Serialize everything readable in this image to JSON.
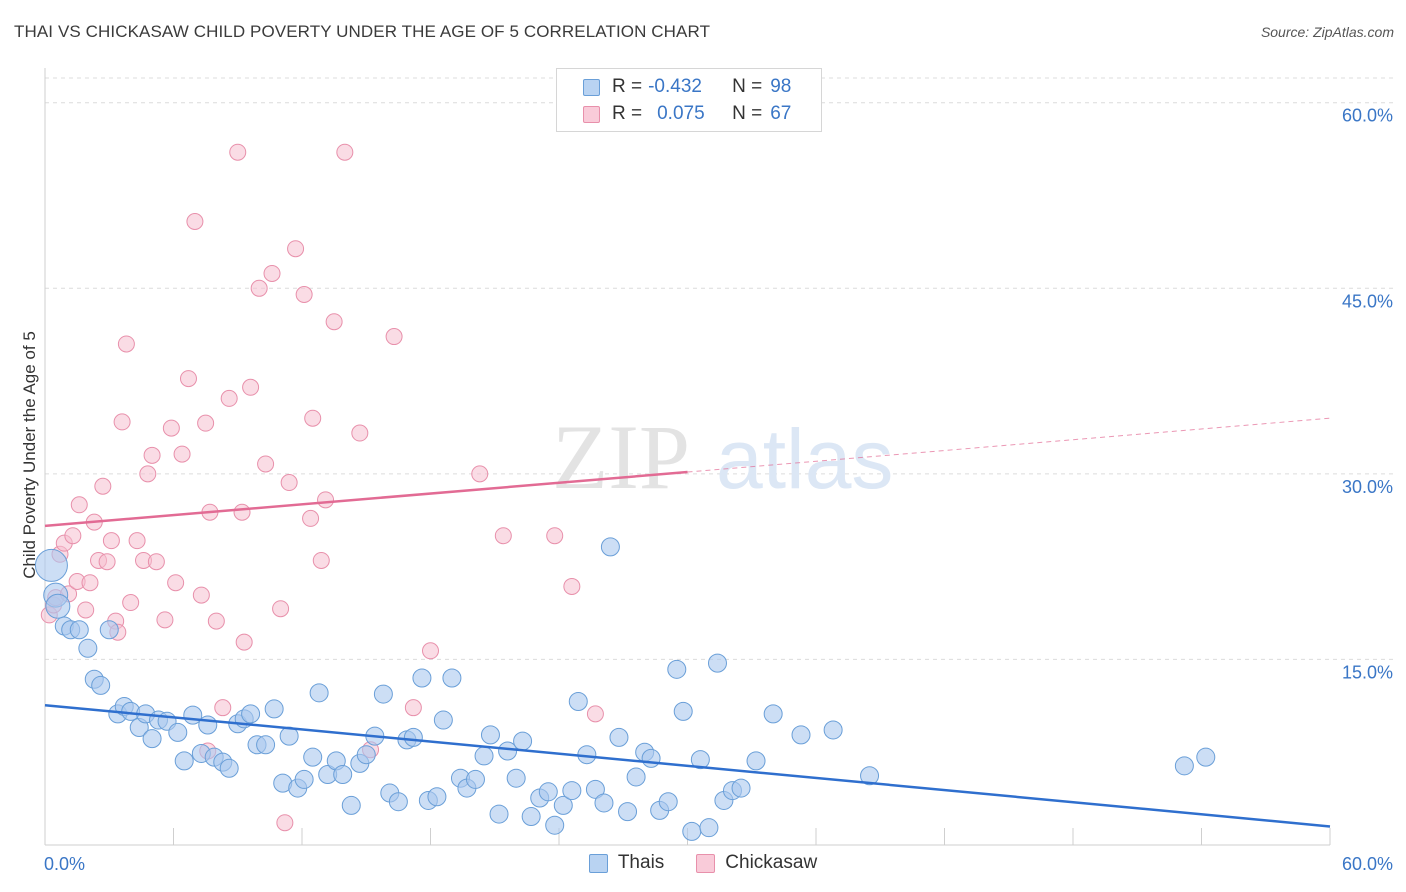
{
  "header": {
    "title": "THAI VS CHICKASAW CHILD POVERTY UNDER THE AGE OF 5 CORRELATION CHART",
    "source": "Source: ZipAtlas.com"
  },
  "watermark": {
    "part1": "ZIP",
    "part2": "atlas"
  },
  "legend": {
    "r_label": "R =",
    "n_label": "N =",
    "thais": {
      "r": "-0.432",
      "n": "98"
    },
    "chickasaw": {
      "r": "0.075",
      "n": "67"
    }
  },
  "bottom_legend": {
    "thais": "Thais",
    "chickasaw": "Chickasaw"
  },
  "colors": {
    "thais_fill": "#aac8ef",
    "thais_stroke": "#6a9fd8",
    "thais_line": "#2f6fce",
    "chickasaw_fill": "#f6bfd0",
    "chickasaw_stroke": "#e890ab",
    "chickasaw_line": "#e26b94",
    "tick_text": "#3a76c6"
  },
  "chart_data": {
    "type": "scatter",
    "title": "THAI VS CHICKASAW CHILD POVERTY UNDER THE AGE OF 5 CORRELATION CHART",
    "xlabel": "",
    "ylabel": "Child Poverty Under the Age of 5",
    "xlim": [
      0,
      60
    ],
    "ylim": [
      0,
      62
    ],
    "x_tick_labels": [
      "0.0%",
      "60.0%"
    ],
    "y_ticks": [
      15,
      30,
      45,
      60
    ],
    "y_tick_labels": [
      "15.0%",
      "30.0%",
      "45.0%",
      "60.0%"
    ],
    "grid": true,
    "legend_position": "top-center",
    "series": [
      {
        "name": "Thais",
        "r": -0.432,
        "n": 98,
        "trend": {
          "x": [
            0,
            60
          ],
          "y": [
            11.3,
            1.5
          ],
          "dashed_from": null
        },
        "points": [
          [
            0.3,
            22.6
          ],
          [
            0.5,
            20.2
          ],
          [
            0.6,
            19.3
          ],
          [
            0.9,
            17.7
          ],
          [
            1.2,
            17.4
          ],
          [
            1.6,
            17.4
          ],
          [
            2.0,
            15.9
          ],
          [
            2.3,
            13.4
          ],
          [
            2.6,
            12.9
          ],
          [
            3.0,
            17.4
          ],
          [
            3.4,
            10.6
          ],
          [
            3.7,
            11.2
          ],
          [
            4.0,
            10.8
          ],
          [
            4.4,
            9.5
          ],
          [
            4.7,
            10.6
          ],
          [
            5.0,
            8.6
          ],
          [
            5.3,
            10.1
          ],
          [
            5.7,
            10.0
          ],
          [
            6.2,
            9.1
          ],
          [
            6.5,
            6.8
          ],
          [
            6.9,
            10.5
          ],
          [
            7.3,
            7.4
          ],
          [
            7.6,
            9.7
          ],
          [
            7.9,
            7.1
          ],
          [
            8.3,
            6.7
          ],
          [
            8.6,
            6.2
          ],
          [
            9.0,
            9.8
          ],
          [
            9.3,
            10.2
          ],
          [
            9.6,
            10.6
          ],
          [
            9.9,
            8.1
          ],
          [
            10.3,
            8.1
          ],
          [
            10.7,
            11.0
          ],
          [
            11.1,
            5.0
          ],
          [
            11.4,
            8.8
          ],
          [
            11.8,
            4.6
          ],
          [
            12.1,
            5.3
          ],
          [
            12.5,
            7.1
          ],
          [
            12.8,
            12.3
          ],
          [
            13.2,
            5.7
          ],
          [
            13.6,
            6.8
          ],
          [
            13.9,
            5.7
          ],
          [
            14.3,
            3.2
          ],
          [
            14.7,
            6.6
          ],
          [
            15.0,
            7.3
          ],
          [
            15.4,
            8.8
          ],
          [
            15.8,
            12.2
          ],
          [
            16.1,
            4.2
          ],
          [
            16.5,
            3.5
          ],
          [
            16.9,
            8.5
          ],
          [
            17.2,
            8.7
          ],
          [
            17.6,
            13.5
          ],
          [
            17.9,
            3.6
          ],
          [
            18.3,
            3.9
          ],
          [
            18.6,
            10.1
          ],
          [
            19.0,
            13.5
          ],
          [
            19.4,
            5.4
          ],
          [
            19.7,
            4.6
          ],
          [
            20.1,
            5.3
          ],
          [
            20.5,
            7.2
          ],
          [
            20.8,
            8.9
          ],
          [
            21.2,
            2.5
          ],
          [
            21.6,
            7.6
          ],
          [
            22.0,
            5.4
          ],
          [
            22.3,
            8.4
          ],
          [
            22.7,
            2.3
          ],
          [
            23.1,
            3.8
          ],
          [
            23.5,
            4.3
          ],
          [
            23.8,
            1.6
          ],
          [
            24.2,
            3.2
          ],
          [
            24.6,
            4.4
          ],
          [
            24.9,
            11.6
          ],
          [
            25.3,
            7.3
          ],
          [
            25.7,
            4.5
          ],
          [
            26.1,
            3.4
          ],
          [
            26.4,
            24.1
          ],
          [
            26.8,
            8.7
          ],
          [
            27.2,
            2.7
          ],
          [
            27.6,
            5.5
          ],
          [
            28.0,
            7.5
          ],
          [
            28.3,
            7.0
          ],
          [
            28.7,
            2.8
          ],
          [
            29.1,
            3.5
          ],
          [
            29.5,
            14.2
          ],
          [
            29.8,
            10.8
          ],
          [
            30.2,
            1.1
          ],
          [
            30.6,
            6.9
          ],
          [
            31.0,
            1.4
          ],
          [
            31.4,
            14.7
          ],
          [
            31.7,
            3.6
          ],
          [
            32.1,
            4.4
          ],
          [
            32.5,
            4.6
          ],
          [
            33.2,
            6.8
          ],
          [
            34.0,
            10.6
          ],
          [
            35.3,
            8.9
          ],
          [
            36.8,
            9.3
          ],
          [
            38.5,
            5.6
          ],
          [
            53.2,
            6.4
          ],
          [
            54.2,
            7.1
          ]
        ]
      },
      {
        "name": "Chickasaw",
        "r": 0.075,
        "n": 67,
        "trend": {
          "x": [
            0,
            60
          ],
          "y": [
            25.8,
            34.5
          ],
          "dashed_from": 30
        },
        "points": [
          [
            0.2,
            18.6
          ],
          [
            0.4,
            19.4
          ],
          [
            0.5,
            20.0
          ],
          [
            0.7,
            23.5
          ],
          [
            0.9,
            24.4
          ],
          [
            1.1,
            20.3
          ],
          [
            1.3,
            25.0
          ],
          [
            1.5,
            21.3
          ],
          [
            1.6,
            27.5
          ],
          [
            1.9,
            19.0
          ],
          [
            2.1,
            21.2
          ],
          [
            2.3,
            26.1
          ],
          [
            2.5,
            23.0
          ],
          [
            2.7,
            29.0
          ],
          [
            2.9,
            22.9
          ],
          [
            3.1,
            24.6
          ],
          [
            3.3,
            18.1
          ],
          [
            3.4,
            17.2
          ],
          [
            3.6,
            34.2
          ],
          [
            3.8,
            40.5
          ],
          [
            4.0,
            19.6
          ],
          [
            4.3,
            24.6
          ],
          [
            4.6,
            23.0
          ],
          [
            4.8,
            30.0
          ],
          [
            5.0,
            31.5
          ],
          [
            5.2,
            22.9
          ],
          [
            5.6,
            18.2
          ],
          [
            5.9,
            33.7
          ],
          [
            6.1,
            21.2
          ],
          [
            6.4,
            31.6
          ],
          [
            6.7,
            37.7
          ],
          [
            7.0,
            50.4
          ],
          [
            7.3,
            20.2
          ],
          [
            7.5,
            34.1
          ],
          [
            7.7,
            26.9
          ],
          [
            8.0,
            18.1
          ],
          [
            8.3,
            11.1
          ],
          [
            8.6,
            36.1
          ],
          [
            9.0,
            56.0
          ],
          [
            9.3,
            16.4
          ],
          [
            9.6,
            37.0
          ],
          [
            10.0,
            45.0
          ],
          [
            10.3,
            30.8
          ],
          [
            10.6,
            46.2
          ],
          [
            11.0,
            19.1
          ],
          [
            11.4,
            29.3
          ],
          [
            11.7,
            48.2
          ],
          [
            12.1,
            44.5
          ],
          [
            12.5,
            34.5
          ],
          [
            12.9,
            23.0
          ],
          [
            13.1,
            27.9
          ],
          [
            13.5,
            42.3
          ],
          [
            14.0,
            56.0
          ],
          [
            14.7,
            33.3
          ],
          [
            15.2,
            7.7
          ],
          [
            16.3,
            41.1
          ],
          [
            17.2,
            11.1
          ],
          [
            18.0,
            15.7
          ],
          [
            20.3,
            30.0
          ],
          [
            21.4,
            25.0
          ],
          [
            23.8,
            25.0
          ],
          [
            24.6,
            20.9
          ],
          [
            25.7,
            10.6
          ],
          [
            7.6,
            7.6
          ],
          [
            11.2,
            1.8
          ],
          [
            9.2,
            26.9
          ],
          [
            12.4,
            26.4
          ]
        ]
      }
    ]
  }
}
